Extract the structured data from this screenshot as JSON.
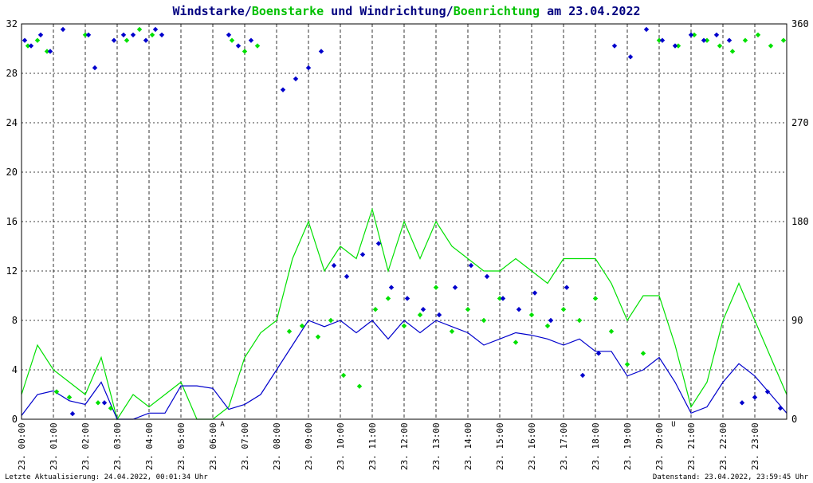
{
  "title": {
    "part1": "Windstarke/",
    "part2": "Boenstarke",
    "part3": " und Windrichtung/",
    "part4": "Boenrichtung",
    "part5": " am 23.04.2022"
  },
  "colors": {
    "wind": "#0000cc",
    "gust": "#00e000",
    "title_dark": "#000080",
    "title_green": "#00c000",
    "marker": "#cc0000"
  },
  "footer": {
    "left": "Letzte Aktualisierung: 24.04.2022, 00:01:34 Uhr",
    "right": "Datenstand: 23.04.2022, 23:59:45 Uhr"
  },
  "markers": [
    {
      "label": "A",
      "hour": 6.3
    },
    {
      "label": "U",
      "hour": 20.45
    }
  ],
  "chart_data": {
    "type": "line",
    "xlim": [
      0,
      24
    ],
    "ylim_left": [
      0,
      32
    ],
    "ylim_right": [
      0,
      360
    ],
    "y_ticks_left": [
      "0",
      "4",
      "8",
      "12",
      "16",
      "20",
      "24",
      "28",
      "32"
    ],
    "y_ticks_right": [
      "0",
      "90",
      "180",
      "270",
      "360"
    ],
    "x_ticks": [
      "23. 00:00",
      "23. 01:00",
      "23. 02:00",
      "23. 03:00",
      "23. 04:00",
      "23. 05:00",
      "23. 06:00",
      "23. 07:00",
      "23. 08:00",
      "23. 09:00",
      "23. 10:00",
      "23. 11:00",
      "23. 12:00",
      "23. 13:00",
      "23. 14:00",
      "23. 15:00",
      "23. 16:00",
      "23. 17:00",
      "23. 18:00",
      "23. 19:00",
      "23. 20:00",
      "23. 21:00",
      "23. 22:00",
      "23. 23:00"
    ],
    "grid": true,
    "series": [
      {
        "name": "Windstarke",
        "kind": "line",
        "axis": "left",
        "hours": [
          0,
          0.5,
          1,
          1.5,
          2,
          2.5,
          3,
          3.5,
          4,
          4.5,
          5,
          5.5,
          6,
          6.5,
          7,
          7.5,
          8,
          8.5,
          9,
          9.5,
          10,
          10.5,
          11,
          11.5,
          12,
          12.5,
          13,
          13.5,
          14,
          14.5,
          15,
          15.5,
          16,
          16.5,
          17,
          17.5,
          18,
          18.5,
          19,
          19.5,
          20,
          20.5,
          21,
          21.5,
          22,
          22.5,
          23,
          23.5,
          24
        ],
        "values": [
          0.3,
          2,
          2.3,
          1.5,
          1.2,
          3,
          0,
          0,
          0.5,
          0.5,
          2.7,
          2.7,
          2.5,
          0.8,
          1.2,
          2,
          4,
          6,
          8,
          7.5,
          8,
          7,
          8,
          6.5,
          8,
          7,
          8,
          7.5,
          7,
          6,
          6.5,
          7,
          6.8,
          6.5,
          6,
          6.5,
          5.5,
          5.5,
          3.5,
          4,
          5,
          3,
          0.5,
          1,
          3,
          4.5,
          3.5,
          2,
          0.5
        ]
      },
      {
        "name": "Boenstarke",
        "kind": "line",
        "axis": "left",
        "hours": [
          0,
          0.5,
          1,
          1.5,
          2,
          2.5,
          3,
          3.5,
          4,
          4.5,
          5,
          5.5,
          6,
          6.5,
          7,
          7.5,
          8,
          8.5,
          9,
          9.5,
          10,
          10.5,
          11,
          11.5,
          12,
          12.5,
          13,
          13.5,
          14,
          14.5,
          15,
          15.5,
          16,
          16.5,
          17,
          17.5,
          18,
          18.5,
          19,
          19.5,
          20,
          20.5,
          21,
          21.5,
          22,
          22.5,
          23,
          23.5,
          24
        ],
        "values": [
          2,
          6,
          4,
          3,
          2,
          5,
          0,
          2,
          1,
          2,
          3,
          0,
          0,
          1,
          5,
          7,
          8,
          13,
          16,
          12,
          14,
          13,
          17,
          12,
          16,
          13,
          16,
          14,
          13,
          12,
          12,
          13,
          12,
          11,
          13,
          13,
          13,
          11,
          8,
          10,
          10,
          6,
          1,
          3,
          8,
          11,
          8,
          5,
          2
        ]
      },
      {
        "name": "Windrichtung",
        "kind": "scatter",
        "axis": "right",
        "hours": [
          0.1,
          0.3,
          0.6,
          0.9,
          1.3,
          1.6,
          2.1,
          2.3,
          2.6,
          2.9,
          3.2,
          3.5,
          3.9,
          4.2,
          4.4,
          6.5,
          6.8,
          7.2,
          8.2,
          8.6,
          9.0,
          9.4,
          9.8,
          10.2,
          10.7,
          11.2,
          11.6,
          12.1,
          12.6,
          13.1,
          13.6,
          14.1,
          14.6,
          15.1,
          15.6,
          16.1,
          16.6,
          17.1,
          17.6,
          18.1,
          18.6,
          19.1,
          19.6,
          20.1,
          20.5,
          21.0,
          21.4,
          21.8,
          22.2,
          22.6,
          23.0,
          23.4,
          23.8
        ],
        "values": [
          345,
          340,
          350,
          335,
          355,
          5,
          350,
          320,
          15,
          345,
          350,
          350,
          345,
          355,
          350,
          350,
          340,
          345,
          300,
          310,
          320,
          335,
          140,
          130,
          150,
          160,
          120,
          110,
          100,
          95,
          120,
          140,
          130,
          110,
          100,
          115,
          90,
          120,
          40,
          60,
          340,
          330,
          355,
          345,
          340,
          350,
          345,
          350,
          345,
          15,
          20,
          25,
          10
        ]
      },
      {
        "name": "Boenrichtung",
        "kind": "scatter",
        "axis": "right",
        "hours": [
          0.2,
          0.5,
          0.8,
          1.1,
          1.5,
          2.0,
          2.4,
          2.8,
          3.3,
          3.7,
          4.1,
          6.6,
          7.0,
          7.4,
          8.4,
          8.8,
          9.3,
          9.7,
          10.1,
          10.6,
          11.1,
          11.5,
          12.0,
          12.5,
          13.0,
          13.5,
          14.0,
          14.5,
          15.0,
          15.5,
          16.0,
          16.5,
          17.0,
          17.5,
          18.0,
          18.5,
          19.0,
          19.5,
          20.0,
          20.6,
          21.1,
          21.5,
          21.9,
          22.3,
          22.7,
          23.1,
          23.5,
          23.9
        ],
        "values": [
          340,
          345,
          335,
          25,
          20,
          350,
          15,
          10,
          345,
          355,
          350,
          345,
          335,
          340,
          80,
          85,
          75,
          90,
          40,
          30,
          100,
          110,
          85,
          95,
          120,
          80,
          100,
          90,
          110,
          70,
          95,
          85,
          100,
          90,
          110,
          80,
          50,
          60,
          345,
          340,
          350,
          345,
          340,
          335,
          345,
          350,
          340,
          345
        ]
      }
    ]
  }
}
